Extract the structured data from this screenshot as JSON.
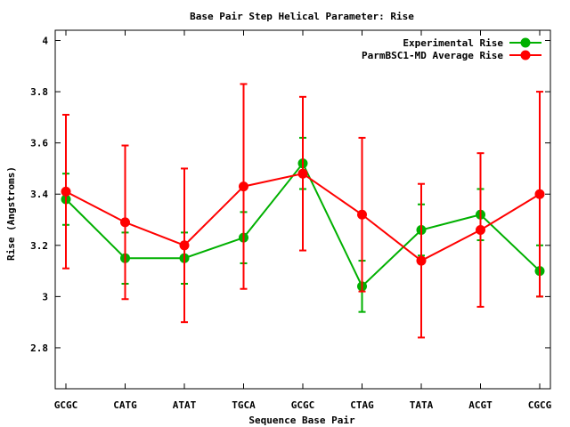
{
  "chart_data": {
    "type": "line",
    "title": "Base Pair Step Helical Parameter: Rise",
    "xlabel": "Sequence Base Pair",
    "ylabel": "Rise (Angstroms)",
    "categories": [
      "GCGC",
      "CATG",
      "ATAT",
      "TGCA",
      "GCGC",
      "CTAG",
      "TATA",
      "ACGT",
      "CGCG"
    ],
    "ylim": [
      2.64,
      4.04
    ],
    "yticks": [
      "2.8",
      "3",
      "3.2",
      "3.4",
      "3.6",
      "3.8",
      "4"
    ],
    "yticks_values": [
      2.8,
      3.0,
      3.2,
      3.4,
      3.6,
      3.8,
      4.0
    ],
    "grid": false,
    "legend_position": "top-right",
    "series": [
      {
        "name": "Experimental Rise",
        "color": "#00b000",
        "values": [
          3.38,
          3.15,
          3.15,
          3.23,
          3.52,
          3.04,
          3.26,
          3.32,
          3.1
        ],
        "err_low": [
          3.28,
          3.05,
          3.05,
          3.13,
          3.42,
          2.94,
          3.16,
          3.22,
          3.0
        ],
        "err_high": [
          3.48,
          3.25,
          3.25,
          3.33,
          3.62,
          3.14,
          3.36,
          3.42,
          3.2
        ]
      },
      {
        "name": "ParmBSC1-MD Average Rise",
        "color": "#ff0000",
        "values": [
          3.41,
          3.29,
          3.2,
          3.43,
          3.48,
          3.32,
          3.14,
          3.26,
          3.4
        ],
        "err_low": [
          3.11,
          2.99,
          2.9,
          3.03,
          3.18,
          3.02,
          2.84,
          2.96,
          3.0
        ],
        "err_high": [
          3.71,
          3.59,
          3.5,
          3.83,
          3.78,
          3.62,
          3.44,
          3.56,
          3.8
        ]
      }
    ]
  }
}
